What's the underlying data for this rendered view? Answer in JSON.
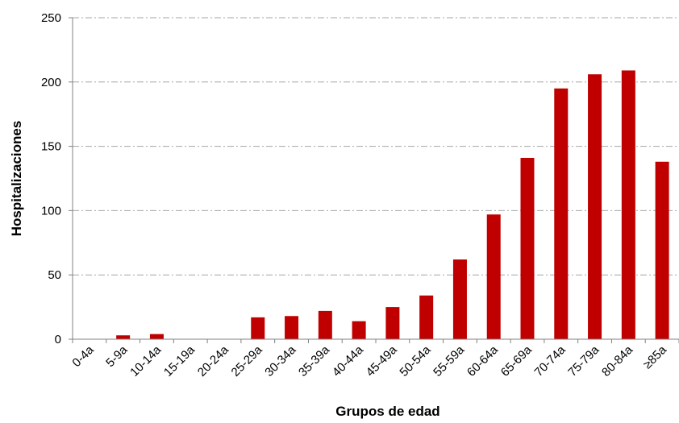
{
  "chart_data": {
    "type": "bar",
    "title": "",
    "xlabel": "Grupos de edad",
    "ylabel": "Hospitalizaciones",
    "categories": [
      "0-4a",
      "5-9a",
      "10-14a",
      "15-19a",
      "20-24a",
      "25-29a",
      "30-34a",
      "35-39a",
      "40-44a",
      "45-49a",
      "50-54a",
      "55-59a",
      "60-64a",
      "65-69a",
      "70-74a",
      "75-79a",
      "80-84a",
      "≥85a"
    ],
    "values": [
      0,
      3,
      4,
      0,
      0,
      17,
      18,
      22,
      14,
      25,
      34,
      62,
      97,
      141,
      195,
      206,
      209,
      138
    ],
    "ylim": [
      0,
      250
    ],
    "yticks": [
      0,
      50,
      100,
      150,
      200,
      250
    ],
    "grid": true,
    "legend": "none",
    "bar_color": "#c00000",
    "grid_color": "#a6a6a6"
  }
}
